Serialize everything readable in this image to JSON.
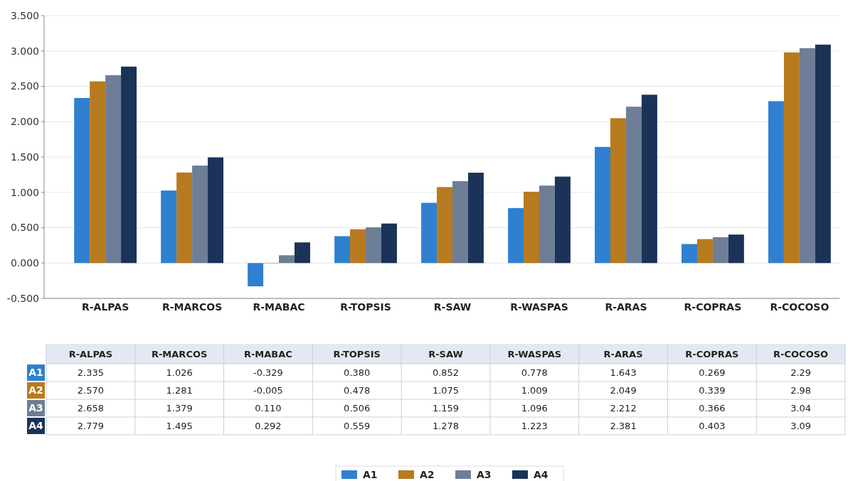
{
  "chart_data": {
    "type": "bar",
    "categories": [
      "R-ALPAS",
      "R-MARCOS",
      "R-MABAC",
      "R-TOPSIS",
      "R-SAW",
      "R-WASPAS",
      "R-ARAS",
      "R-COPRAS",
      "R-COCOSO"
    ],
    "series": [
      {
        "name": "A1",
        "color": "#2f80d0",
        "values": [
          2.335,
          1.026,
          -0.329,
          0.38,
          0.852,
          0.778,
          1.643,
          0.269,
          2.29
        ],
        "value_labels": [
          "2.335",
          "1.026",
          "-0.329",
          "0.380",
          "0.852",
          "0.778",
          "1.643",
          "0.269",
          "2.29"
        ]
      },
      {
        "name": "A2",
        "color": "#b87a1e",
        "values": [
          2.57,
          1.281,
          -0.005,
          0.478,
          1.075,
          1.009,
          2.049,
          0.339,
          2.98
        ],
        "value_labels": [
          "2.570",
          "1.281",
          "-0.005",
          "0.478",
          "1.075",
          "1.009",
          "2.049",
          "0.339",
          "2.98"
        ]
      },
      {
        "name": "A3",
        "color": "#6e7e96",
        "values": [
          2.658,
          1.379,
          0.11,
          0.506,
          1.159,
          1.096,
          2.212,
          0.366,
          3.04
        ],
        "value_labels": [
          "2.658",
          "1.379",
          "0.110",
          "0.506",
          "1.159",
          "1.096",
          "2.212",
          "0.366",
          "3.04"
        ]
      },
      {
        "name": "A4",
        "color": "#1b3358",
        "values": [
          2.779,
          1.495,
          0.292,
          0.559,
          1.278,
          1.223,
          2.381,
          0.403,
          3.09
        ],
        "value_labels": [
          "2.779",
          "1.495",
          "0.292",
          "0.559",
          "1.278",
          "1.223",
          "2.381",
          "0.403",
          "3.09"
        ]
      }
    ],
    "ylim": [
      -0.5,
      3.5
    ],
    "yticks": [
      {
        "value": -0.5,
        "label": "-0.500"
      },
      {
        "value": 0,
        "label": "0.000"
      },
      {
        "value": 0.5,
        "label": "0.500"
      },
      {
        "value": 1,
        "label": "1.000"
      },
      {
        "value": 1.5,
        "label": "1.500"
      },
      {
        "value": 2,
        "label": "2.000"
      },
      {
        "value": 2.5,
        "label": "2.500"
      },
      {
        "value": 3,
        "label": "3.000"
      },
      {
        "value": 3.5,
        "label": "3.500"
      }
    ],
    "grid": "y",
    "legend": "bottom"
  }
}
